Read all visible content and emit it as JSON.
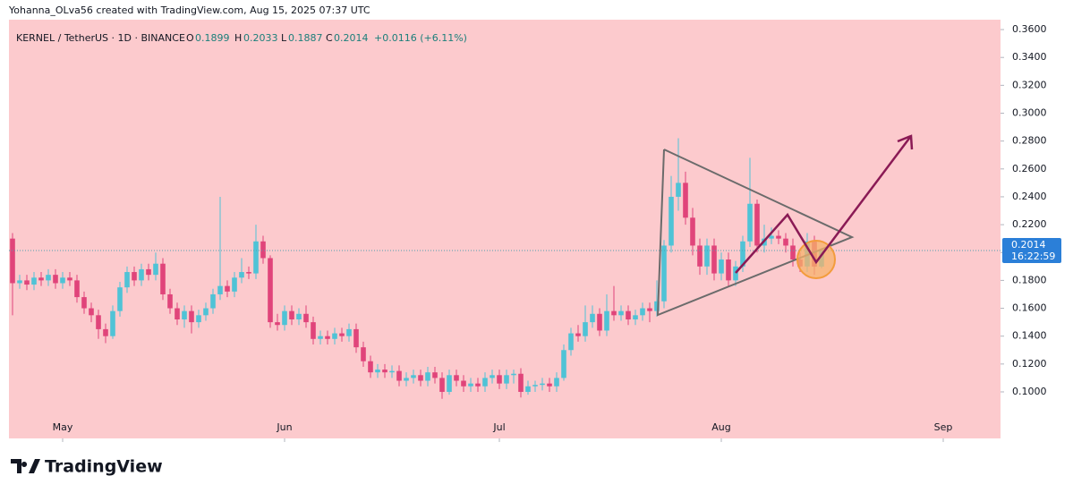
{
  "credit": "Yohanna_OLva56 created with TradingView.com, Aug 15, 2025 07:37 UTC",
  "brand": "TradingView",
  "chart_data": {
    "type": "candlestick",
    "title": "KERNEL / TetherUS · 1D · BINANCE",
    "ohlc_labels": {
      "open": "O",
      "high": "H",
      "low": "L",
      "close": "C"
    },
    "change": "+0.0116 (+6.11%)",
    "countdown": "16:22:59",
    "up_color": "#4fc3d6",
    "down_color": "#e0447a",
    "background": "#fccacd",
    "open": [
      0.21,
      0.178,
      0.18,
      0.177,
      0.182,
      0.18,
      0.184,
      0.178,
      0.182,
      0.18,
      0.168,
      0.16,
      0.155,
      0.145,
      0.14,
      0.158,
      0.175,
      0.186,
      0.18,
      0.188,
      0.184,
      0.192,
      0.17,
      0.16,
      0.152,
      0.158,
      0.15,
      0.155,
      0.16,
      0.17,
      0.176,
      0.172,
      0.182,
      0.186,
      0.185,
      0.208,
      0.196,
      0.15,
      0.148,
      0.158,
      0.152,
      0.156,
      0.15,
      0.138,
      0.14,
      0.138,
      0.142,
      0.14,
      0.145,
      0.132,
      0.122,
      0.114,
      0.116,
      0.114,
      0.115,
      0.108,
      0.11,
      0.112,
      0.108,
      0.114,
      0.11,
      0.1,
      0.112,
      0.108,
      0.104,
      0.106,
      0.104,
      0.11,
      0.112,
      0.106,
      0.112,
      0.113,
      0.1,
      0.104,
      0.105,
      0.106,
      0.104,
      0.11,
      0.13,
      0.142,
      0.14,
      0.15,
      0.156,
      0.144,
      0.158,
      0.155,
      0.158,
      0.152,
      0.155,
      0.16,
      0.158,
      0.165,
      0.205,
      0.24,
      0.25,
      0.225,
      0.205,
      0.19,
      0.205,
      0.185,
      0.195,
      0.18,
      0.19,
      0.208,
      0.235,
      0.205,
      0.21,
      0.212,
      0.21,
      0.205,
      0.195,
      0.19,
      0.208,
      0.1899
    ],
    "high": [
      0.214,
      0.184,
      0.184,
      0.186,
      0.186,
      0.188,
      0.188,
      0.186,
      0.186,
      0.184,
      0.172,
      0.164,
      0.159,
      0.149,
      0.162,
      0.179,
      0.19,
      0.19,
      0.192,
      0.192,
      0.2,
      0.196,
      0.174,
      0.164,
      0.162,
      0.162,
      0.159,
      0.164,
      0.174,
      0.24,
      0.18,
      0.186,
      0.196,
      0.19,
      0.22,
      0.212,
      0.198,
      0.156,
      0.162,
      0.162,
      0.16,
      0.162,
      0.154,
      0.144,
      0.144,
      0.146,
      0.146,
      0.149,
      0.149,
      0.136,
      0.126,
      0.12,
      0.12,
      0.119,
      0.119,
      0.114,
      0.116,
      0.116,
      0.118,
      0.118,
      0.114,
      0.116,
      0.116,
      0.112,
      0.11,
      0.11,
      0.114,
      0.116,
      0.116,
      0.116,
      0.116,
      0.117,
      0.108,
      0.108,
      0.11,
      0.11,
      0.114,
      0.134,
      0.146,
      0.148,
      0.162,
      0.162,
      0.16,
      0.17,
      0.176,
      0.162,
      0.162,
      0.159,
      0.164,
      0.164,
      0.18,
      0.209,
      0.255,
      0.282,
      0.258,
      0.232,
      0.21,
      0.21,
      0.21,
      0.2,
      0.2,
      0.194,
      0.212,
      0.268,
      0.238,
      0.22,
      0.218,
      0.216,
      0.214,
      0.21,
      0.2,
      0.214,
      0.212,
      0.2033
    ],
    "low": [
      0.155,
      0.174,
      0.173,
      0.173,
      0.176,
      0.176,
      0.174,
      0.174,
      0.176,
      0.164,
      0.156,
      0.15,
      0.138,
      0.135,
      0.138,
      0.154,
      0.171,
      0.176,
      0.176,
      0.18,
      0.18,
      0.166,
      0.156,
      0.148,
      0.146,
      0.142,
      0.146,
      0.151,
      0.156,
      0.166,
      0.168,
      0.168,
      0.178,
      0.181,
      0.181,
      0.192,
      0.146,
      0.144,
      0.144,
      0.148,
      0.148,
      0.146,
      0.134,
      0.134,
      0.134,
      0.134,
      0.136,
      0.136,
      0.128,
      0.118,
      0.11,
      0.11,
      0.11,
      0.11,
      0.104,
      0.104,
      0.106,
      0.104,
      0.104,
      0.106,
      0.095,
      0.098,
      0.104,
      0.1,
      0.1,
      0.1,
      0.1,
      0.106,
      0.102,
      0.102,
      0.106,
      0.096,
      0.098,
      0.1,
      0.101,
      0.1,
      0.1,
      0.108,
      0.126,
      0.136,
      0.136,
      0.146,
      0.14,
      0.14,
      0.151,
      0.151,
      0.148,
      0.148,
      0.151,
      0.15,
      0.154,
      0.16,
      0.2,
      0.23,
      0.22,
      0.198,
      0.184,
      0.184,
      0.18,
      0.18,
      0.176,
      0.176,
      0.186,
      0.204,
      0.2,
      0.2,
      0.206,
      0.206,
      0.2,
      0.19,
      0.186,
      0.186,
      0.184,
      0.1887
    ],
    "close": [
      0.178,
      0.18,
      0.177,
      0.182,
      0.18,
      0.184,
      0.178,
      0.182,
      0.18,
      0.168,
      0.16,
      0.155,
      0.145,
      0.14,
      0.158,
      0.175,
      0.186,
      0.18,
      0.188,
      0.184,
      0.192,
      0.17,
      0.16,
      0.152,
      0.158,
      0.15,
      0.155,
      0.16,
      0.17,
      0.176,
      0.172,
      0.182,
      0.186,
      0.185,
      0.208,
      0.196,
      0.15,
      0.148,
      0.158,
      0.152,
      0.156,
      0.15,
      0.138,
      0.14,
      0.138,
      0.142,
      0.14,
      0.145,
      0.132,
      0.122,
      0.114,
      0.116,
      0.114,
      0.115,
      0.108,
      0.11,
      0.112,
      0.108,
      0.114,
      0.11,
      0.1,
      0.112,
      0.108,
      0.104,
      0.106,
      0.104,
      0.11,
      0.112,
      0.106,
      0.112,
      0.113,
      0.1,
      0.104,
      0.105,
      0.106,
      0.104,
      0.11,
      0.13,
      0.142,
      0.14,
      0.15,
      0.156,
      0.144,
      0.158,
      0.155,
      0.158,
      0.152,
      0.155,
      0.16,
      0.158,
      0.165,
      0.205,
      0.24,
      0.25,
      0.225,
      0.205,
      0.19,
      0.205,
      0.185,
      0.195,
      0.18,
      0.19,
      0.208,
      0.235,
      0.205,
      0.21,
      0.212,
      0.21,
      0.205,
      0.195,
      0.19,
      0.208,
      0.1899,
      0.2014
    ],
    "xlim": [
      -0.5,
      138
    ],
    "xticks": [
      {
        "value": 7,
        "label": "May"
      },
      {
        "value": 38,
        "label": "Jun"
      },
      {
        "value": 68,
        "label": "Jul"
      },
      {
        "value": 99,
        "label": "Aug"
      },
      {
        "value": 130,
        "label": "Sep"
      }
    ],
    "ylim": [
      0.0666,
      0.3671
    ],
    "yticks": [
      {
        "value": 0.1,
        "label": "0.1000"
      },
      {
        "value": 0.12,
        "label": "0.1200"
      },
      {
        "value": 0.14,
        "label": "0.1400"
      },
      {
        "value": 0.16,
        "label": "0.1600"
      },
      {
        "value": 0.18,
        "label": "0.1800"
      },
      {
        "value": 0.2,
        "label": "0.2000"
      },
      {
        "value": 0.22,
        "label": "0.2200"
      },
      {
        "value": 0.24,
        "label": "0.2400"
      },
      {
        "value": 0.26,
        "label": "0.2600"
      },
      {
        "value": 0.28,
        "label": "0.2800"
      },
      {
        "value": 0.3,
        "label": "0.3000"
      },
      {
        "value": 0.32,
        "label": "0.3200"
      },
      {
        "value": 0.34,
        "label": "0.3400"
      },
      {
        "value": 0.36,
        "label": "0.3600"
      }
    ]
  }
}
